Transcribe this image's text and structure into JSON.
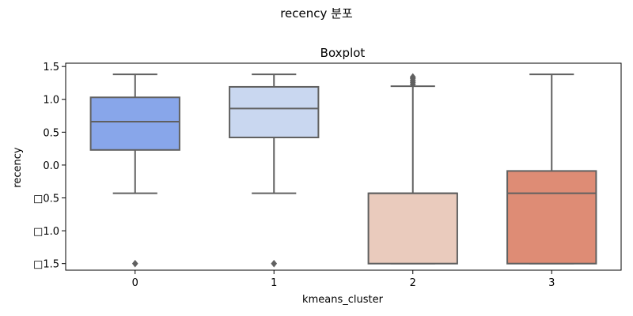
{
  "figure_title": "recency 분포",
  "chart_data": {
    "type": "boxplot",
    "title": "Boxplot",
    "xlabel": "kmeans_cluster",
    "ylabel": "recency",
    "ylim": [
      -1.6,
      1.55
    ],
    "y_ticks": [
      1.5,
      1.0,
      0.5,
      0.0,
      -0.5,
      -1.0,
      -1.5
    ],
    "y_tick_labels": [
      "1.5",
      "1.0",
      "0.5",
      "0.0",
      "□0.5",
      "□1.0",
      "□1.5"
    ],
    "categories": [
      "0",
      "1",
      "2",
      "3"
    ],
    "colors": [
      "#88a6ea",
      "#c9d7f0",
      "#eacbbd",
      "#de8c75"
    ],
    "boxes": [
      {
        "category": "0",
        "whisker_low": -0.43,
        "q1": 0.23,
        "median": 0.66,
        "q3": 1.03,
        "whisker_high": 1.38,
        "outliers": [
          -1.5
        ]
      },
      {
        "category": "1",
        "whisker_low": -0.43,
        "q1": 0.42,
        "median": 0.86,
        "q3": 1.19,
        "whisker_high": 1.38,
        "outliers": [
          -1.5
        ]
      },
      {
        "category": "2",
        "whisker_low": -1.5,
        "q1": -1.5,
        "median": -0.43,
        "q3": -0.43,
        "whisker_high": 1.2,
        "outliers": [
          1.23,
          1.26,
          1.29,
          1.32,
          1.34
        ]
      },
      {
        "category": "3",
        "whisker_low": -1.5,
        "q1": -1.5,
        "median": -0.43,
        "q3": -0.09,
        "whisker_high": 1.38,
        "outliers": []
      }
    ]
  }
}
